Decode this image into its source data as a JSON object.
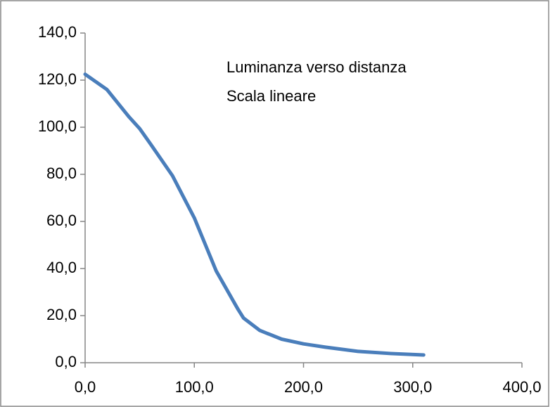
{
  "chart_data": {
    "type": "line",
    "annotations": [
      "Luminanza verso distanza",
      "Scala lineare"
    ],
    "x": [
      0,
      20,
      40,
      50,
      60,
      80,
      100,
      120,
      140,
      145,
      160,
      180,
      200,
      220,
      250,
      280,
      310
    ],
    "values": [
      122.5,
      116,
      104.5,
      99.4,
      92.8,
      79.4,
      61.5,
      39,
      22.7,
      19,
      13.7,
      10,
      8,
      6.6,
      4.8,
      3.9,
      3.3
    ],
    "color": "#4a7ebb",
    "xlim": [
      0,
      400
    ],
    "xticks": [
      {
        "value": 0,
        "label": "0,0"
      },
      {
        "value": 100,
        "label": "100,0"
      },
      {
        "value": 200,
        "label": "200,0"
      },
      {
        "value": 300,
        "label": "300,0"
      },
      {
        "value": 400,
        "label": "400,0"
      }
    ],
    "ylim": [
      0,
      140
    ],
    "yticks": [
      {
        "value": 0,
        "label": "0,0"
      },
      {
        "value": 20,
        "label": "20,0"
      },
      {
        "value": 40,
        "label": "40,0"
      },
      {
        "value": 60,
        "label": "60,0"
      },
      {
        "value": 80,
        "label": "80,0"
      },
      {
        "value": 100,
        "label": "100,0"
      },
      {
        "value": 120,
        "label": "120,0"
      },
      {
        "value": 140,
        "label": "140,0"
      }
    ],
    "grid": false
  }
}
